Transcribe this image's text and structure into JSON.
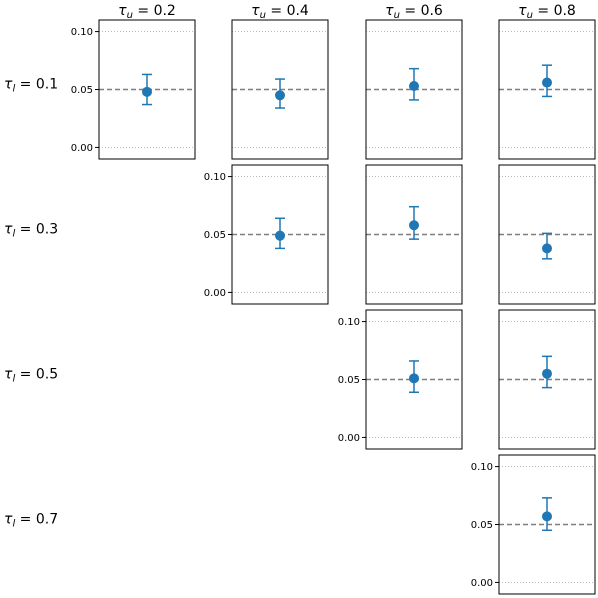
{
  "chart_data": {
    "type": "scatter",
    "layout": "upper-triangular grid of panels",
    "column_titles": [
      {
        "symbol": "τ",
        "sub": "u",
        "eq": " = 0.2"
      },
      {
        "symbol": "τ",
        "sub": "u",
        "eq": " = 0.4"
      },
      {
        "symbol": "τ",
        "sub": "u",
        "eq": " = 0.6"
      },
      {
        "symbol": "τ",
        "sub": "u",
        "eq": " = 0.8"
      }
    ],
    "row_labels": [
      {
        "symbol": "τ",
        "sub": "l",
        "eq": " = 0.1"
      },
      {
        "symbol": "τ",
        "sub": "l",
        "eq": " = 0.3"
      },
      {
        "symbol": "τ",
        "sub": "l",
        "eq": " = 0.5"
      },
      {
        "symbol": "τ",
        "sub": "l",
        "eq": " = 0.7"
      }
    ],
    "ylim": [
      -0.01,
      0.11
    ],
    "yticks": [
      0.0,
      0.05,
      0.1
    ],
    "ytick_labels": [
      "0.00",
      "0.05",
      "0.10"
    ],
    "reference_line": 0.05,
    "grid": "horizontal dotted at ticks",
    "colors": {
      "point": "#1f77b4",
      "reference": "#7f7f7f"
    },
    "panels": [
      {
        "row": 0,
        "col": 0,
        "y": 0.048,
        "lower": 0.037,
        "upper": 0.063,
        "show_yticks": true
      },
      {
        "row": 0,
        "col": 1,
        "y": 0.045,
        "lower": 0.034,
        "upper": 0.059,
        "show_yticks": false
      },
      {
        "row": 0,
        "col": 2,
        "y": 0.053,
        "lower": 0.041,
        "upper": 0.068,
        "show_yticks": false
      },
      {
        "row": 0,
        "col": 3,
        "y": 0.056,
        "lower": 0.044,
        "upper": 0.071,
        "show_yticks": false
      },
      {
        "row": 1,
        "col": 1,
        "y": 0.049,
        "lower": 0.038,
        "upper": 0.064,
        "show_yticks": true
      },
      {
        "row": 1,
        "col": 2,
        "y": 0.058,
        "lower": 0.046,
        "upper": 0.074,
        "show_yticks": false
      },
      {
        "row": 1,
        "col": 3,
        "y": 0.038,
        "lower": 0.029,
        "upper": 0.051,
        "show_yticks": false
      },
      {
        "row": 2,
        "col": 2,
        "y": 0.051,
        "lower": 0.039,
        "upper": 0.066,
        "show_yticks": true
      },
      {
        "row": 2,
        "col": 3,
        "y": 0.055,
        "lower": 0.043,
        "upper": 0.07,
        "show_yticks": false
      },
      {
        "row": 3,
        "col": 3,
        "y": 0.057,
        "lower": 0.045,
        "upper": 0.073,
        "show_yticks": true
      }
    ]
  }
}
